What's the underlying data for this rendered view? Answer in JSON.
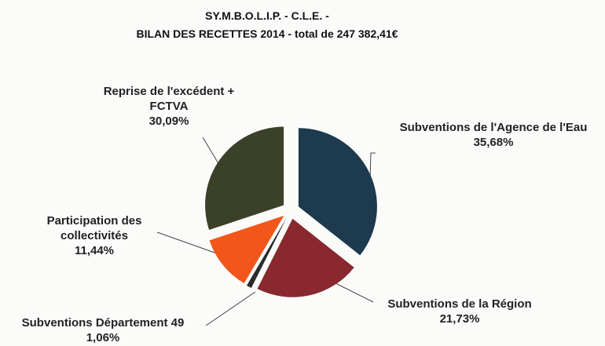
{
  "chart_data": {
    "type": "pie",
    "title": "SY.M.B.O.L.I.P. - C.L.E. -",
    "subtitle": "BILAN DES RECETTES 2014 - total de 247 382,41€",
    "categories": [
      "Subventions de l'Agence de l'Eau",
      "Subventions de la Région",
      "Subventions Département 49",
      "Participation des collectivités",
      "Reprise de l'excédent + FCTVA"
    ],
    "values": [
      35.68,
      21.73,
      1.06,
      11.44,
      30.09
    ],
    "value_labels": [
      "35,68%",
      "21,73%",
      "1,06%",
      "11,44%",
      "30,09%"
    ],
    "colors": [
      "#1d3a4e",
      "#8a2830",
      "#2b2b2b",
      "#f2561a",
      "#3a4128"
    ]
  }
}
